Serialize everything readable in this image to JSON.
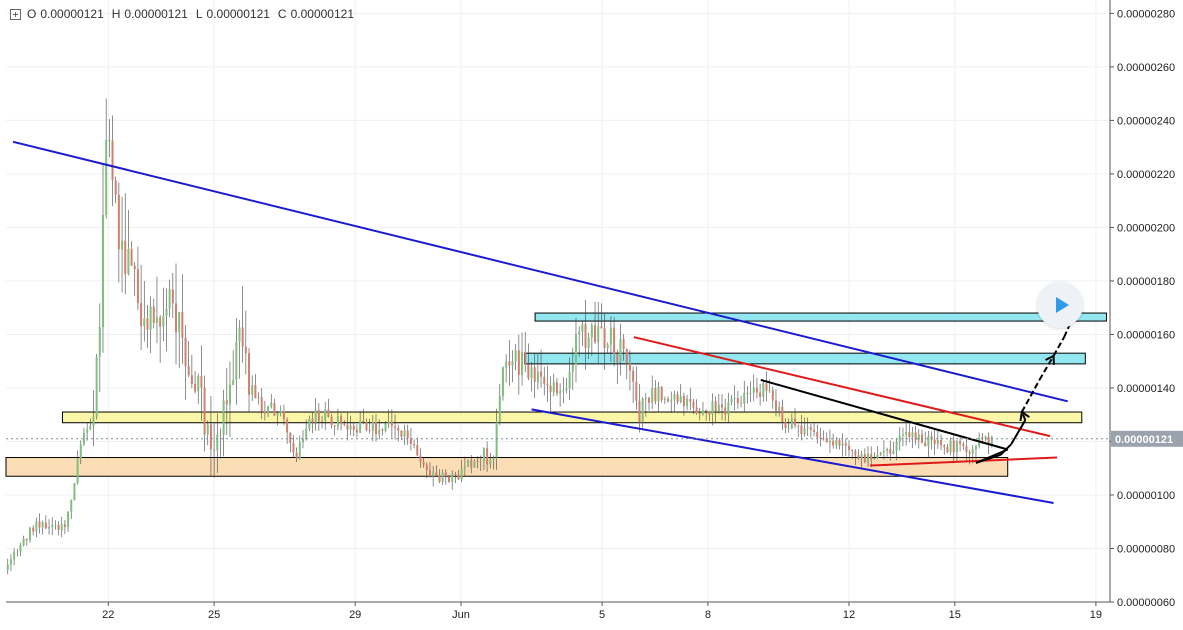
{
  "legend": {
    "o_label": "O",
    "o_value": "0.00000121",
    "h_label": "H",
    "h_value": "0.00000121",
    "l_label": "L",
    "l_value": "0.00000121",
    "c_label": "C",
    "c_value": "0.00000121"
  },
  "last_price_label": "0.00000121",
  "colors": {
    "up": "#7fbf7f",
    "down": "#d17f6f",
    "wick": "#444444",
    "blue_line": "#1a1ad0",
    "red_line": "#e01a1a",
    "black_line": "#000000",
    "cyan_zone": "#7fe3ef",
    "yellow_zone": "#fbf59a",
    "orange_zone": "#fad8a8",
    "price_tag_bg": "#9aa3ad",
    "play_accent": "#2f9ae6"
  },
  "icons": {
    "legend_toggle": "plus-square-icon",
    "play": "play-icon"
  },
  "chart_data": {
    "type": "candlestick",
    "title": "",
    "xlabel": "",
    "ylabel": "",
    "x_tick_labels": [
      "22",
      "25",
      "29",
      "Jun",
      "5",
      "8",
      "12",
      "15",
      "19"
    ],
    "x_tick_days": [
      22,
      25,
      29,
      32,
      36,
      39,
      43,
      46,
      50
    ],
    "y_tick_labels": [
      "0.00000280",
      "0.00000260",
      "0.00000240",
      "0.00000220",
      "0.00000200",
      "0.00000180",
      "0.00000160",
      "0.00000140",
      "0.00000120",
      "0.00000100",
      "0.00000080",
      "0.00000060"
    ],
    "ylim": [
      6e-07,
      2.85e-06
    ],
    "xlim_day": [
      19.1,
      50.4
    ],
    "grid": true,
    "last_price": 1.21e-06,
    "ohlc_keypoints": [
      [
        19.1,
        7.2e-07
      ],
      [
        19.5,
        8.2e-07
      ],
      [
        20.0,
        9e-07
      ],
      [
        20.8,
        8.8e-07
      ],
      [
        21.2,
        1.18e-06
      ],
      [
        21.6,
        1.28e-06
      ],
      [
        21.9,
        2.1e-06
      ],
      [
        22.0,
        2.45e-06
      ],
      [
        22.3,
        2e-06
      ],
      [
        22.7,
        1.75e-06
      ],
      [
        23.3,
        1.7e-06
      ],
      [
        24.0,
        1.65e-06
      ],
      [
        24.6,
        1.35e-06
      ],
      [
        24.9,
        1.2e-06
      ],
      [
        25.3,
        1.3e-06
      ],
      [
        25.7,
        1.6e-06
      ],
      [
        26.2,
        1.35e-06
      ],
      [
        26.9,
        1.3e-06
      ],
      [
        27.3,
        1.15e-06
      ],
      [
        27.8,
        1.3e-06
      ],
      [
        28.5,
        1.28e-06
      ],
      [
        29.2,
        1.25e-06
      ],
      [
        30.0,
        1.25e-06
      ],
      [
        30.6,
        1.2e-06
      ],
      [
        31.1,
        1.08e-06
      ],
      [
        31.8,
        1.06e-06
      ],
      [
        32.3,
        1.12e-06
      ],
      [
        32.9,
        1.16e-06
      ],
      [
        33.2,
        1.45e-06
      ],
      [
        33.6,
        1.5e-06
      ],
      [
        34.5,
        1.42e-06
      ],
      [
        34.9,
        1.35e-06
      ],
      [
        35.3,
        1.6e-06
      ],
      [
        36.2,
        1.58e-06
      ],
      [
        36.8,
        1.5e-06
      ],
      [
        37.0,
        1.3e-06
      ],
      [
        37.6,
        1.38e-06
      ],
      [
        38.3,
        1.34e-06
      ],
      [
        38.9,
        1.32e-06
      ],
      [
        39.6,
        1.33e-06
      ],
      [
        40.2,
        1.38e-06
      ],
      [
        40.6,
        1.4e-06
      ],
      [
        41.2,
        1.27e-06
      ],
      [
        42.0,
        1.23e-06
      ],
      [
        42.7,
        1.19e-06
      ],
      [
        43.5,
        1.13e-06
      ],
      [
        44.0,
        1.16e-06
      ],
      [
        44.8,
        1.24e-06
      ],
      [
        45.3,
        1.19e-06
      ],
      [
        46.0,
        1.18e-06
      ],
      [
        46.5,
        1.18e-06
      ],
      [
        47.1,
        1.21e-06
      ]
    ],
    "annotations": {
      "zones": [
        {
          "color": "cyan",
          "x_day": [
            34.1,
            50.3
          ],
          "y": [
            1.65e-06,
            1.68e-06
          ]
        },
        {
          "color": "cyan",
          "x_day": [
            33.8,
            49.7
          ],
          "y": [
            1.49e-06,
            1.53e-06
          ]
        },
        {
          "color": "yellow",
          "x_day": [
            20.7,
            49.6
          ],
          "y": [
            1.27e-06,
            1.31e-06
          ]
        },
        {
          "color": "orange",
          "x_day": [
            19.1,
            47.5
          ],
          "y": [
            1.07e-06,
            1.14e-06
          ]
        }
      ],
      "lines": [
        {
          "color": "blue",
          "from": [
            19.3,
            2.32e-06
          ],
          "to": [
            49.2,
            1.35e-06
          ]
        },
        {
          "color": "blue",
          "from": [
            34.0,
            1.32e-06
          ],
          "to": [
            48.8,
            9.7e-07
          ]
        },
        {
          "color": "red",
          "from": [
            36.9,
            1.59e-06
          ],
          "to": [
            48.7,
            1.22e-06
          ]
        },
        {
          "color": "red",
          "from": [
            43.6,
            1.11e-06
          ],
          "to": [
            48.9,
            1.14e-06
          ]
        },
        {
          "color": "black",
          "from": [
            40.5,
            1.43e-06
          ],
          "to": [
            47.5,
            1.17e-06
          ]
        },
        {
          "color": "black",
          "from": [
            46.6,
            1.12e-06
          ],
          "to": [
            47.5,
            1.17e-06
          ]
        }
      ],
      "arrow_path": [
        [
          46.6,
          1.12e-06
        ],
        [
          47.3,
          1.15e-06
        ],
        [
          47.6,
          1.19e-06
        ],
        [
          48.0,
          1.28e-06
        ],
        [
          47.9,
          1.31e-06
        ],
        [
          48.4,
          1.43e-06
        ],
        [
          48.8,
          1.52e-06
        ],
        [
          49.1,
          1.59e-06
        ],
        [
          49.4,
          1.68e-06
        ]
      ]
    }
  }
}
